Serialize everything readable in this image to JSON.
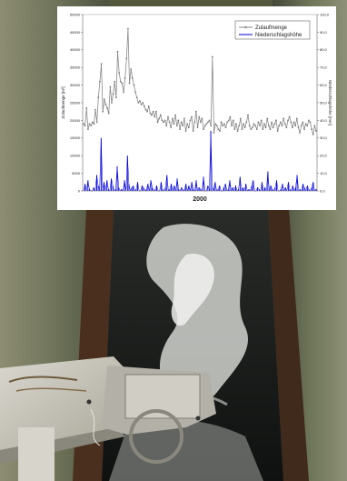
{
  "chart_data": {
    "type": "line",
    "title": "",
    "xlabel": "2000",
    "ylabel": "Zulaufmenge [m³]",
    "y2label": "Niederschlagshöhe [mm]",
    "ylim": [
      0,
      50000
    ],
    "y2lim": [
      0,
      100
    ],
    "yticks": [
      "0",
      "5000",
      "10000",
      "15000",
      "20000",
      "25000",
      "30000",
      "35000",
      "40000",
      "45000",
      "50000"
    ],
    "y2ticks": [
      "0,0",
      "10,0",
      "20,0",
      "30,0",
      "40,0",
      "50,0",
      "60,0",
      "70,0",
      "80,0",
      "90,0",
      "100,0"
    ],
    "grid": false,
    "legend_position": "top-right",
    "series": [
      {
        "name": "Zulaufmenge",
        "axis": "left",
        "color": "#8a8a8a",
        "values": [
          19000,
          18500,
          23500,
          17500,
          19000,
          18500,
          19500,
          19000,
          23000,
          19500,
          26500,
          31000,
          36000,
          22500,
          26000,
          24500,
          23500,
          22000,
          29500,
          25000,
          27500,
          31000,
          26500,
          39500,
          33500,
          31000,
          30500,
          28000,
          32000,
          37500,
          46000,
          30500,
          34500,
          32000,
          30000,
          28000,
          26500,
          25000,
          25500,
          24500,
          25000,
          24000,
          23000,
          22500,
          24000,
          22000,
          21500,
          22500,
          21000,
          22500,
          19500,
          20500,
          21500,
          20000,
          19500,
          20000,
          18500,
          21000,
          19500,
          18000,
          20500,
          19000,
          21500,
          18500,
          20000,
          17500,
          19500,
          18500,
          20500,
          17000,
          19000,
          18000,
          20000,
          21000,
          17000,
          19500,
          22500,
          18000,
          21000,
          19500,
          20500,
          17500,
          18500,
          19000,
          19500,
          20000,
          18500,
          38000,
          16500,
          19000,
          18500,
          17500,
          17000,
          19500,
          18500,
          19000,
          18000,
          19500,
          20000,
          21000,
          18500,
          20000,
          17500,
          19000,
          17000,
          18500,
          20500,
          17500,
          19000,
          18000,
          19500,
          21500,
          18500,
          17500,
          18000,
          19000,
          18500,
          17500,
          19500,
          18500,
          20000,
          17500,
          19000,
          18000,
          20500,
          18500,
          17500,
          19500,
          18000,
          19000,
          20000,
          17000,
          18500,
          19500,
          18500,
          20500,
          19000,
          18000,
          20000,
          21000,
          19500,
          18000,
          19500,
          18500,
          20500,
          18000,
          16500,
          18500,
          19500,
          17500,
          19000,
          18500,
          20000,
          19500,
          17500,
          16000,
          18500,
          17000
        ]
      },
      {
        "name": "Niederschlagshöhe",
        "axis": "right",
        "color": "#0000dd",
        "values": [
          0,
          4,
          0,
          6,
          1,
          0,
          0,
          2,
          0,
          9,
          3,
          1,
          30,
          1,
          5,
          0,
          6,
          1,
          0,
          7,
          3,
          0,
          1,
          14,
          2,
          0,
          1,
          0,
          6,
          0,
          20,
          4,
          0,
          2,
          3,
          0,
          1,
          5,
          0,
          0,
          3,
          2,
          0,
          1,
          4,
          0,
          6,
          2,
          0,
          1,
          3,
          0,
          0,
          5,
          1,
          0,
          2,
          9,
          0,
          1,
          4,
          0,
          3,
          0,
          7,
          1,
          0,
          2,
          0,
          1,
          4,
          0,
          3,
          0,
          5,
          1,
          0,
          6,
          0,
          2,
          1,
          0,
          8,
          0,
          0,
          3,
          1,
          34,
          0,
          2,
          5,
          0,
          1,
          3,
          0,
          0,
          2,
          4,
          0,
          1,
          6,
          0,
          2,
          0,
          3,
          0,
          1,
          8,
          0,
          2,
          0,
          4,
          0,
          1,
          0,
          3,
          6,
          0,
          0,
          2,
          1,
          0,
          5,
          0,
          2,
          0,
          11,
          0,
          3,
          1,
          0,
          2,
          6,
          0,
          0,
          1,
          4,
          0,
          2,
          0,
          5,
          1,
          0,
          3,
          0,
          2,
          9,
          0,
          1,
          0,
          4,
          2,
          0,
          3,
          1,
          0,
          2,
          5,
          0,
          1
        ]
      }
    ]
  }
}
